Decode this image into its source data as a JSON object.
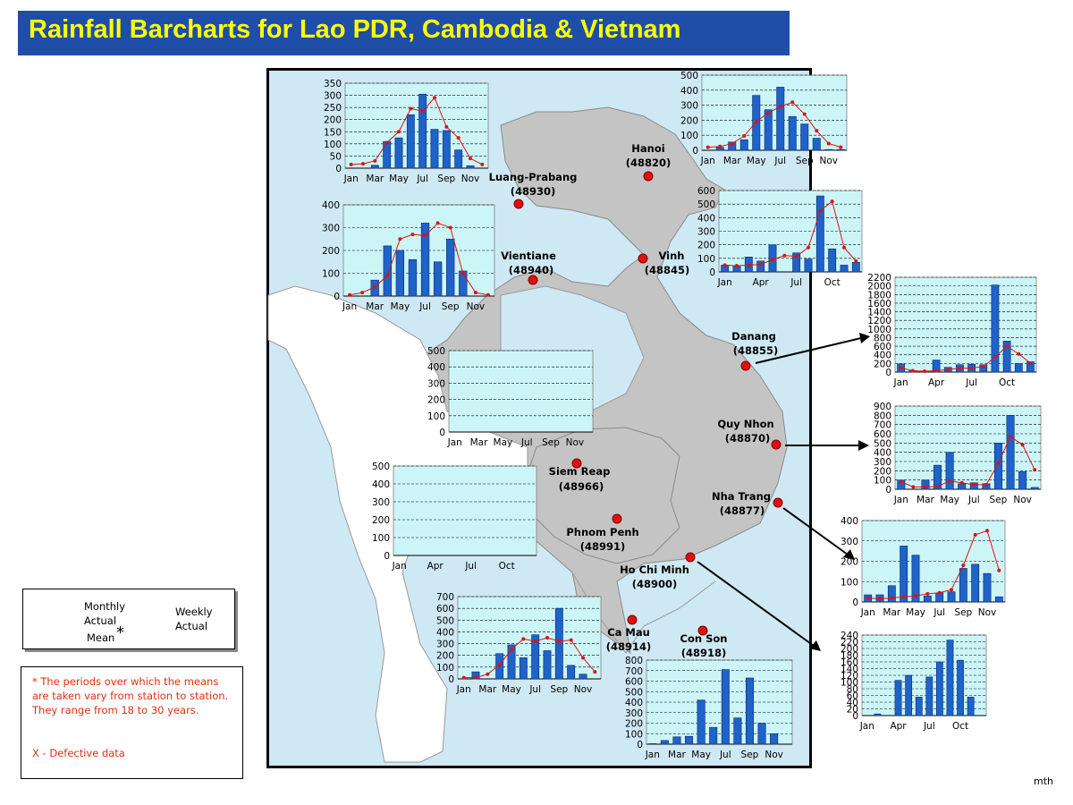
{
  "title": "Rainfall Barcharts for Lao PDR, Cambodia & Vietnam",
  "colors": {
    "bar": "#1f62c8",
    "mean": "#e01010",
    "plot_bg": "#ccf5f8",
    "land": "#c4c4c4",
    "sea": "#cfe9f4",
    "title_bg": "#1f4ea8",
    "title_fg": "#ffff00",
    "station": "#e01010"
  },
  "stations": [
    {
      "name": "Hanoi",
      "code": "(48820)"
    },
    {
      "name": "Luang-Prabang",
      "code": "(48930)"
    },
    {
      "name": "Vientiane",
      "code": "(48940)"
    },
    {
      "name": "Vinh",
      "code": "(48845)"
    },
    {
      "name": "Danang",
      "code": "(48855)"
    },
    {
      "name": "Quy Nhon",
      "code": "(48870)"
    },
    {
      "name": "Nha Trang",
      "code": "(48877)"
    },
    {
      "name": "Siem Reap",
      "code": "(48966)"
    },
    {
      "name": "Phnom Penh",
      "code": "(48991)"
    },
    {
      "name": "Ho Chi Minh",
      "code": "(48900)"
    },
    {
      "name": "Ca Mau",
      "code": "(48914)"
    },
    {
      "name": "Con Son",
      "code": "(48918)"
    }
  ],
  "legend": {
    "monthly": "Monthly",
    "actual": "Actual",
    "mean": "Mean",
    "asterisk": "*",
    "weekly": "Weekly",
    "weekly_actual": "Actual"
  },
  "note": "* The periods over which the means are taken vary from station to station. They range from 18 to 30 years.",
  "defective": "X - Defective data",
  "footer": "mth",
  "chart_data": [
    {
      "type": "bar",
      "station": "Luang-Prabang",
      "ylim": [
        0,
        350
      ],
      "yticks": [
        0,
        50,
        100,
        150,
        200,
        250,
        300,
        350
      ],
      "xticks": [
        "Jan",
        "Mar",
        "May",
        "Jul",
        "Sep",
        "Nov"
      ],
      "x": [
        1,
        2,
        3,
        4,
        5,
        6,
        7,
        8,
        9,
        10,
        11,
        12
      ],
      "series": [
        {
          "name": "Monthly Actual",
          "type": "bar",
          "values": [
            0,
            0,
            12,
            110,
            125,
            220,
            305,
            160,
            155,
            75,
            10,
            0
          ]
        },
        {
          "name": "Mean",
          "type": "line",
          "values": [
            15,
            18,
            30,
            105,
            150,
            245,
            235,
            290,
            170,
            125,
            40,
            15
          ]
        }
      ]
    },
    {
      "type": "bar",
      "station": "Hanoi",
      "ylim": [
        0,
        500
      ],
      "yticks": [
        0,
        100,
        200,
        300,
        400,
        500
      ],
      "xticks": [
        "Jan",
        "Mar",
        "May",
        "Jul",
        "Sep",
        "Nov"
      ],
      "x": [
        1,
        2,
        3,
        4,
        5,
        6,
        7,
        8,
        9,
        10,
        11,
        12
      ],
      "series": [
        {
          "name": "Monthly Actual",
          "type": "bar",
          "values": [
            0,
            20,
            55,
            70,
            365,
            270,
            420,
            225,
            175,
            80,
            5,
            5
          ]
        },
        {
          "name": "Mean",
          "type": "line",
          "values": [
            20,
            25,
            45,
            95,
            190,
            250,
            290,
            320,
            240,
            130,
            45,
            20
          ]
        }
      ]
    },
    {
      "type": "bar",
      "station": "Vientiane",
      "ylim": [
        0,
        400
      ],
      "yticks": [
        0,
        100,
        200,
        300,
        400
      ],
      "xticks": [
        "Jan",
        "Mar",
        "May",
        "Jul",
        "Sep",
        "Nov"
      ],
      "x": [
        1,
        2,
        3,
        4,
        5,
        6,
        7,
        8,
        9,
        10,
        11,
        12
      ],
      "series": [
        {
          "name": "Monthly Actual",
          "type": "bar",
          "values": [
            0,
            0,
            70,
            220,
            200,
            160,
            320,
            150,
            250,
            110,
            0,
            0
          ]
        },
        {
          "name": "Mean",
          "type": "line",
          "values": [
            5,
            15,
            40,
            90,
            250,
            270,
            265,
            320,
            300,
            100,
            15,
            5
          ]
        }
      ]
    },
    {
      "type": "bar",
      "station": "Vinh",
      "ylim": [
        0,
        600
      ],
      "yticks": [
        0,
        100,
        200,
        300,
        400,
        500,
        600
      ],
      "xticks": [
        "Jan",
        "Apr",
        "Jul",
        "Oct"
      ],
      "x": [
        1,
        2,
        3,
        4,
        5,
        6,
        7,
        8,
        9,
        10,
        11,
        12
      ],
      "series": [
        {
          "name": "Monthly Actual",
          "type": "bar",
          "values": [
            50,
            40,
            110,
            80,
            200,
            0,
            140,
            95,
            560,
            170,
            50,
            70
          ]
        },
        {
          "name": "Mean",
          "type": "line",
          "values": [
            50,
            45,
            50,
            55,
            90,
            120,
            115,
            180,
            450,
            520,
            180,
            80
          ]
        }
      ]
    },
    {
      "type": "bar",
      "station": "Danang",
      "ylim": [
        0,
        2200
      ],
      "yticks": [
        0,
        200,
        400,
        600,
        800,
        1000,
        1200,
        1400,
        1600,
        1800,
        2000,
        2200
      ],
      "xticks": [
        "Jan",
        "Apr",
        "Jul",
        "Oct"
      ],
      "x": [
        1,
        2,
        3,
        4,
        5,
        6,
        7,
        8,
        9,
        10,
        11,
        12
      ],
      "series": [
        {
          "name": "Monthly Actual",
          "type": "bar",
          "values": [
            190,
            30,
            20,
            280,
            110,
            170,
            180,
            170,
            2020,
            720,
            200,
            240
          ]
        },
        {
          "name": "Mean",
          "type": "line",
          "values": [
            100,
            30,
            20,
            30,
            60,
            90,
            90,
            130,
            350,
            600,
            420,
            210
          ]
        }
      ]
    },
    {
      "type": "bar",
      "station": "Quy Nhon",
      "ylim": [
        0,
        900
      ],
      "yticks": [
        0,
        100,
        200,
        300,
        400,
        500,
        600,
        700,
        800,
        900
      ],
      "xticks": [
        "Jan",
        "Mar",
        "May",
        "Jul",
        "Sep",
        "Nov"
      ],
      "x": [
        1,
        2,
        3,
        4,
        5,
        6,
        7,
        8,
        9,
        10,
        11,
        12
      ],
      "series": [
        {
          "name": "Monthly Actual",
          "type": "bar",
          "values": [
            100,
            0,
            100,
            260,
            400,
            60,
            70,
            60,
            500,
            800,
            190,
            20
          ]
        },
        {
          "name": "Mean",
          "type": "line",
          "values": [
            80,
            25,
            25,
            30,
            90,
            70,
            50,
            50,
            280,
            570,
            480,
            210
          ]
        }
      ]
    },
    {
      "type": "bar",
      "station": "Nha Trang",
      "ylim": [
        0,
        400
      ],
      "yticks": [
        0,
        100,
        200,
        300,
        400
      ],
      "xticks": [
        "Jan",
        "Mar",
        "May",
        "Jul",
        "Sep",
        "Nov"
      ],
      "x": [
        1,
        2,
        3,
        4,
        5,
        6,
        7,
        8,
        9,
        10,
        11,
        12
      ],
      "series": [
        {
          "name": "Monthly Actual",
          "type": "bar",
          "values": [
            35,
            35,
            80,
            275,
            230,
            30,
            45,
            50,
            165,
            185,
            140,
            25
          ]
        },
        {
          "name": "Mean",
          "type": "line",
          "values": [
            20,
            15,
            20,
            25,
            30,
            40,
            45,
            60,
            180,
            330,
            350,
            155
          ]
        }
      ]
    },
    {
      "type": "bar",
      "station": "Siem Reap",
      "ylim": [
        0,
        500
      ],
      "yticks": [
        0,
        100,
        200,
        300,
        400,
        500
      ],
      "xticks": [
        "Jan",
        "Mar",
        "May",
        "Jul",
        "Sep",
        "Nov"
      ],
      "x": [
        1,
        2,
        3,
        4,
        5,
        6,
        7,
        8,
        9,
        10,
        11,
        12
      ],
      "series": []
    },
    {
      "type": "bar",
      "station": "Phnom Penh",
      "ylim": [
        0,
        500
      ],
      "yticks": [
        0,
        100,
        200,
        300,
        400,
        500
      ],
      "xticks": [
        "Jan",
        "Apr",
        "Jul",
        "Oct"
      ],
      "x": [
        1,
        2,
        3,
        4,
        5,
        6,
        7,
        8,
        9,
        10,
        11,
        12
      ],
      "series": []
    },
    {
      "type": "bar",
      "station": "Ho Chi Minh",
      "ylim": [
        0,
        240
      ],
      "yticks": [
        0,
        20,
        40,
        60,
        80,
        100,
        120,
        140,
        160,
        180,
        200,
        220,
        240
      ],
      "xticks": [
        "Jan",
        "Apr",
        "Jul",
        "Oct"
      ],
      "x": [
        1,
        2,
        3,
        4,
        5,
        6,
        7,
        8,
        9,
        10,
        11,
        12
      ],
      "series": [
        {
          "name": "Monthly Actual",
          "type": "bar",
          "values": [
            0,
            5,
            0,
            105,
            120,
            55,
            115,
            160,
            225,
            165,
            55,
            0
          ]
        }
      ]
    },
    {
      "type": "bar",
      "station": "Ca Mau",
      "ylim": [
        0,
        700
      ],
      "yticks": [
        0,
        100,
        200,
        300,
        400,
        500,
        600,
        700
      ],
      "xticks": [
        "Jan",
        "Mar",
        "May",
        "Jul",
        "Sep",
        "Nov"
      ],
      "x": [
        1,
        2,
        3,
        4,
        5,
        6,
        7,
        8,
        9,
        10,
        11,
        12
      ],
      "series": [
        {
          "name": "Monthly Actual",
          "type": "bar",
          "values": [
            0,
            60,
            0,
            215,
            290,
            180,
            375,
            240,
            600,
            115,
            40,
            0
          ]
        },
        {
          "name": "Mean",
          "type": "line",
          "values": [
            10,
            10,
            40,
            120,
            250,
            340,
            320,
            350,
            320,
            330,
            180,
            60
          ]
        }
      ]
    },
    {
      "type": "bar",
      "station": "Con Son",
      "ylim": [
        0,
        800
      ],
      "yticks": [
        0,
        100,
        200,
        300,
        400,
        500,
        600,
        700,
        800
      ],
      "xticks": [
        "Jan",
        "Mar",
        "May",
        "Jul",
        "Sep",
        "Nov"
      ],
      "x": [
        1,
        2,
        3,
        4,
        5,
        6,
        7,
        8,
        9,
        10,
        11,
        12
      ],
      "series": [
        {
          "name": "Monthly Actual",
          "type": "bar",
          "values": [
            5,
            35,
            70,
            75,
            420,
            160,
            710,
            250,
            630,
            200,
            100,
            0
          ]
        }
      ]
    }
  ]
}
